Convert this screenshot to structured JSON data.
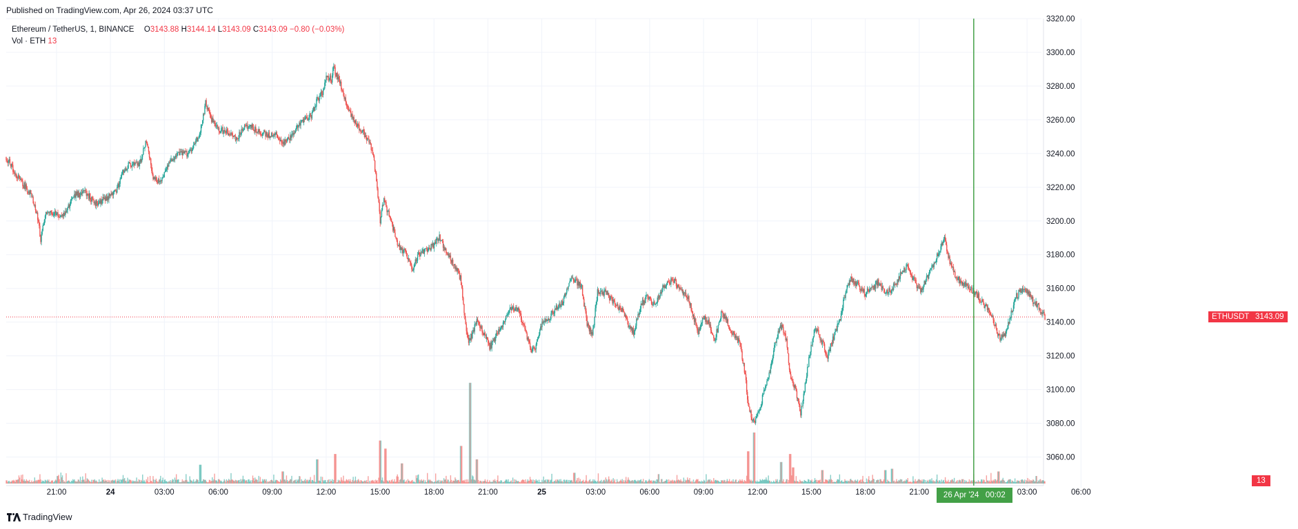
{
  "published": "Published on TradingView.com, Apr 26, 2024 03:37 UTC",
  "legend": {
    "symbol": "Ethereum / TetherUS, 1, BINANCE",
    "o_label": "O",
    "o_value": "3143.88",
    "h_label": "H",
    "h_value": "3144.14",
    "l_label": "L",
    "l_value": "3143.09",
    "c_label": "C",
    "c_value": "3143.09",
    "change": "−0.80 (−0.03%)",
    "vol_label": "Vol · ETH",
    "vol_value": "13"
  },
  "footer": {
    "brand": "TradingView"
  },
  "colors": {
    "up": "#26a69a",
    "down": "#ef5350",
    "cursor": "#43a047",
    "last": "#f23645",
    "grid": "#f0f3fa"
  },
  "chart_data": {
    "type": "candlestick",
    "symbol": "ETHUSDT",
    "interval": "1",
    "ylim": [
      3050,
      3320
    ],
    "y_ticks": [
      "3060.00",
      "3080.00",
      "3100.00",
      "3120.00",
      "3140.00",
      "3160.00",
      "3180.00",
      "3200.00",
      "3220.00",
      "3240.00",
      "3260.00",
      "3280.00",
      "3300.00",
      "3320.00"
    ],
    "x_ticks": [
      "21:00",
      "24",
      "03:00",
      "06:00",
      "09:00",
      "12:00",
      "15:00",
      "18:00",
      "21:00",
      "25",
      "03:00",
      "06:00",
      "09:00",
      "12:00",
      "15:00",
      "18:00",
      "21:00",
      "00:02",
      "03:00",
      "06:00"
    ],
    "x_tick_hours": [
      21,
      24,
      27,
      30,
      33,
      36,
      39,
      42,
      45,
      48,
      51,
      54,
      57,
      60,
      63,
      66,
      69,
      72.033,
      75,
      78
    ],
    "x_start_hour": 18.2,
    "x_end_hour": 75.8,
    "last_price": "3143.09",
    "last_price_label": "ETHUSDT",
    "last_volume": "13",
    "crosshair_time": "26 Apr '24   00:02",
    "crosshair_hour": 72.033,
    "price_path": [
      [
        18.2,
        3238
      ],
      [
        18.6,
        3230
      ],
      [
        19.1,
        3222
      ],
      [
        19.6,
        3216
      ],
      [
        20.0,
        3200
      ],
      [
        20.1,
        3188
      ],
      [
        20.4,
        3206
      ],
      [
        20.9,
        3204
      ],
      [
        21.4,
        3203
      ],
      [
        22.0,
        3215
      ],
      [
        22.6,
        3217
      ],
      [
        23.2,
        3210
      ],
      [
        23.7,
        3213
      ],
      [
        24.3,
        3218
      ],
      [
        24.7,
        3228
      ],
      [
        25.0,
        3233
      ],
      [
        25.6,
        3233
      ],
      [
        26.0,
        3248
      ],
      [
        26.4,
        3225
      ],
      [
        26.8,
        3224
      ],
      [
        27.2,
        3234
      ],
      [
        27.8,
        3240
      ],
      [
        28.3,
        3240
      ],
      [
        28.7,
        3245
      ],
      [
        29.0,
        3254
      ],
      [
        29.3,
        3270
      ],
      [
        29.6,
        3260
      ],
      [
        30.1,
        3254
      ],
      [
        30.6,
        3252
      ],
      [
        31.0,
        3248
      ],
      [
        31.4,
        3255
      ],
      [
        31.8,
        3256
      ],
      [
        32.3,
        3253
      ],
      [
        32.8,
        3251
      ],
      [
        33.2,
        3252
      ],
      [
        33.6,
        3245
      ],
      [
        34.0,
        3250
      ],
      [
        34.4,
        3256
      ],
      [
        34.8,
        3260
      ],
      [
        35.2,
        3263
      ],
      [
        35.5,
        3272
      ],
      [
        35.8,
        3276
      ],
      [
        36.0,
        3285
      ],
      [
        36.3,
        3284
      ],
      [
        36.4,
        3291
      ],
      [
        36.8,
        3281
      ],
      [
        37.2,
        3268
      ],
      [
        37.6,
        3258
      ],
      [
        38.0,
        3253
      ],
      [
        38.4,
        3248
      ],
      [
        38.6,
        3240
      ],
      [
        38.8,
        3225
      ],
      [
        39.0,
        3200
      ],
      [
        39.2,
        3212
      ],
      [
        39.5,
        3204
      ],
      [
        40.0,
        3186
      ],
      [
        40.5,
        3180
      ],
      [
        40.8,
        3170
      ],
      [
        41.1,
        3180
      ],
      [
        41.5,
        3182
      ],
      [
        42.0,
        3186
      ],
      [
        42.3,
        3190
      ],
      [
        42.8,
        3180
      ],
      [
        43.2,
        3173
      ],
      [
        43.5,
        3165
      ],
      [
        43.7,
        3145
      ],
      [
        43.9,
        3128
      ],
      [
        44.1,
        3132
      ],
      [
        44.4,
        3142
      ],
      [
        44.8,
        3133
      ],
      [
        45.1,
        3125
      ],
      [
        45.5,
        3132
      ],
      [
        45.9,
        3140
      ],
      [
        46.3,
        3148
      ],
      [
        46.7,
        3147
      ],
      [
        47.1,
        3135
      ],
      [
        47.4,
        3122
      ],
      [
        47.7,
        3126
      ],
      [
        48.0,
        3140
      ],
      [
        48.4,
        3143
      ],
      [
        48.8,
        3148
      ],
      [
        49.2,
        3152
      ],
      [
        49.5,
        3164
      ],
      [
        49.8,
        3165
      ],
      [
        50.2,
        3162
      ],
      [
        50.5,
        3140
      ],
      [
        50.8,
        3132
      ],
      [
        51.1,
        3158
      ],
      [
        51.6,
        3157
      ],
      [
        52.0,
        3152
      ],
      [
        52.5,
        3147
      ],
      [
        52.8,
        3138
      ],
      [
        53.1,
        3134
      ],
      [
        53.5,
        3150
      ],
      [
        53.9,
        3155
      ],
      [
        54.3,
        3150
      ],
      [
        54.7,
        3160
      ],
      [
        55.0,
        3163
      ],
      [
        55.3,
        3165
      ],
      [
        55.7,
        3160
      ],
      [
        56.1,
        3155
      ],
      [
        56.4,
        3145
      ],
      [
        56.7,
        3134
      ],
      [
        57.0,
        3143
      ],
      [
        57.3,
        3140
      ],
      [
        57.6,
        3128
      ],
      [
        58.0,
        3146
      ],
      [
        58.3,
        3140
      ],
      [
        58.7,
        3132
      ],
      [
        59.0,
        3128
      ],
      [
        59.3,
        3110
      ],
      [
        59.5,
        3090
      ],
      [
        59.8,
        3080
      ],
      [
        60.1,
        3088
      ],
      [
        60.4,
        3100
      ],
      [
        60.7,
        3110
      ],
      [
        61.0,
        3128
      ],
      [
        61.3,
        3138
      ],
      [
        61.6,
        3130
      ],
      [
        61.8,
        3108
      ],
      [
        62.1,
        3100
      ],
      [
        62.4,
        3086
      ],
      [
        62.6,
        3100
      ],
      [
        62.9,
        3120
      ],
      [
        63.2,
        3138
      ],
      [
        63.6,
        3128
      ],
      [
        63.9,
        3120
      ],
      [
        64.2,
        3130
      ],
      [
        64.6,
        3142
      ],
      [
        64.9,
        3158
      ],
      [
        65.2,
        3166
      ],
      [
        65.6,
        3162
      ],
      [
        66.0,
        3157
      ],
      [
        66.4,
        3160
      ],
      [
        66.7,
        3164
      ],
      [
        67.1,
        3157
      ],
      [
        67.5,
        3160
      ],
      [
        67.9,
        3167
      ],
      [
        68.3,
        3173
      ],
      [
        68.7,
        3165
      ],
      [
        69.1,
        3158
      ],
      [
        69.5,
        3168
      ],
      [
        69.9,
        3176
      ],
      [
        70.2,
        3185
      ],
      [
        70.4,
        3190
      ],
      [
        70.7,
        3175
      ],
      [
        71.0,
        3168
      ],
      [
        71.4,
        3163
      ],
      [
        71.8,
        3160
      ],
      [
        72.2,
        3157
      ],
      [
        72.6,
        3150
      ],
      [
        72.9,
        3148
      ],
      [
        73.2,
        3138
      ],
      [
        73.5,
        3130
      ],
      [
        73.8,
        3132
      ],
      [
        74.1,
        3145
      ],
      [
        74.4,
        3155
      ],
      [
        74.7,
        3160
      ],
      [
        75.0,
        3158
      ],
      [
        75.3,
        3153
      ],
      [
        75.6,
        3150
      ],
      [
        75.8,
        3146
      ],
      [
        76.0,
        3143.09
      ]
    ],
    "volume_spikes": [
      [
        29.0,
        14
      ],
      [
        33.6,
        9
      ],
      [
        35.5,
        18
      ],
      [
        36.5,
        22
      ],
      [
        39.0,
        32
      ],
      [
        39.3,
        26
      ],
      [
        40.2,
        15
      ],
      [
        43.5,
        28
      ],
      [
        44.0,
        75
      ],
      [
        44.4,
        18
      ],
      [
        49.8,
        8
      ],
      [
        54.5,
        7
      ],
      [
        59.5,
        24
      ],
      [
        59.8,
        38
      ],
      [
        61.3,
        16
      ],
      [
        61.8,
        22
      ],
      [
        62.0,
        12
      ],
      [
        63.6,
        10
      ],
      [
        67.1,
        10
      ],
      [
        67.5,
        11
      ],
      [
        73.4,
        9
      ]
    ]
  }
}
